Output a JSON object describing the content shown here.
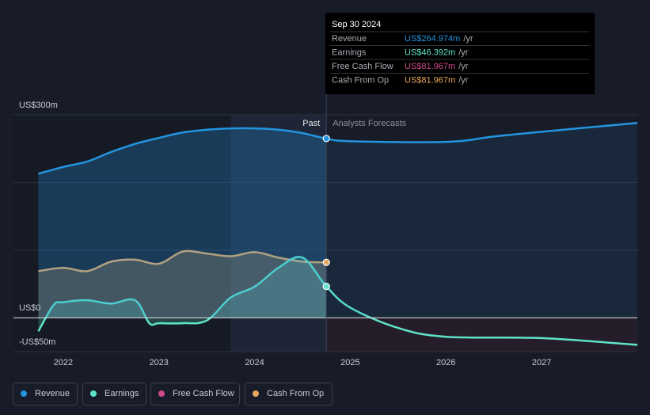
{
  "chart_data": {
    "type": "line",
    "xlim": [
      2021.48,
      2028.0
    ],
    "xticks": [
      2022,
      2023,
      2024,
      2025,
      2026,
      2027
    ],
    "ylim": [
      -50,
      300
    ],
    "yticks": [
      {
        "value": 300,
        "label": "US$300m"
      },
      {
        "value": 0,
        "label": "US$0"
      },
      {
        "value": -50,
        "label": "-US$50m"
      }
    ],
    "gridlines": [
      100,
      200,
      300
    ],
    "divider_x": 2024.75,
    "annotations": {
      "past": "Past",
      "forecast": "Analysts Forecasts"
    },
    "tooltip": {
      "title": "Sep 30 2024",
      "rows": [
        {
          "label": "Revenue",
          "value": "US$264.974m",
          "unit": "/yr"
        },
        {
          "label": "Earnings",
          "value": "US$46.392m",
          "unit": "/yr"
        },
        {
          "label": "Free Cash Flow",
          "value": "US$81.967m",
          "unit": "/yr"
        },
        {
          "label": "Cash From Op",
          "value": "US$81.967m",
          "unit": "/yr"
        }
      ]
    },
    "series": [
      {
        "name": "Revenue",
        "color": "#2394df",
        "x": [
          2021.74,
          2022.0,
          2022.25,
          2022.5,
          2022.75,
          2023.0,
          2023.25,
          2023.5,
          2023.75,
          2024.0,
          2024.25,
          2024.5,
          2024.75,
          2025.0,
          2026.0,
          2026.5,
          2027.0,
          2028.0
        ],
        "values": [
          213,
          223,
          231,
          245,
          257,
          266,
          274,
          278,
          280,
          280,
          278,
          273,
          264.974,
          261,
          260,
          268,
          275,
          288
        ]
      },
      {
        "name": "Earnings",
        "color": "#5ee3c9",
        "x": [
          2021.74,
          2021.9,
          2022.0,
          2022.25,
          2022.5,
          2022.75,
          2022.9,
          2023.0,
          2023.25,
          2023.5,
          2023.75,
          2024.0,
          2024.25,
          2024.5,
          2024.75,
          2025.0,
          2025.5,
          2026.0,
          2027.0,
          2028.0
        ],
        "values": [
          -20,
          19,
          23,
          26,
          21,
          26,
          -8,
          -8,
          -8,
          -4,
          30,
          46,
          74,
          89,
          46.392,
          15,
          -15,
          -28,
          -30,
          -40
        ]
      },
      {
        "name": "Free Cash Flow",
        "color": "#d04a8a",
        "x": [
          2024.75
        ],
        "values": [
          81.967
        ]
      },
      {
        "name": "Cash From Op",
        "color": "#e8a75c",
        "x": [
          2021.74,
          2022.0,
          2022.25,
          2022.5,
          2022.75,
          2023.0,
          2023.25,
          2023.5,
          2023.75,
          2024.0,
          2024.25,
          2024.5,
          2024.75
        ],
        "values": [
          69,
          74,
          69,
          83,
          86,
          80,
          98,
          95,
          91,
          97,
          89,
          83,
          81.967
        ]
      }
    ]
  }
}
